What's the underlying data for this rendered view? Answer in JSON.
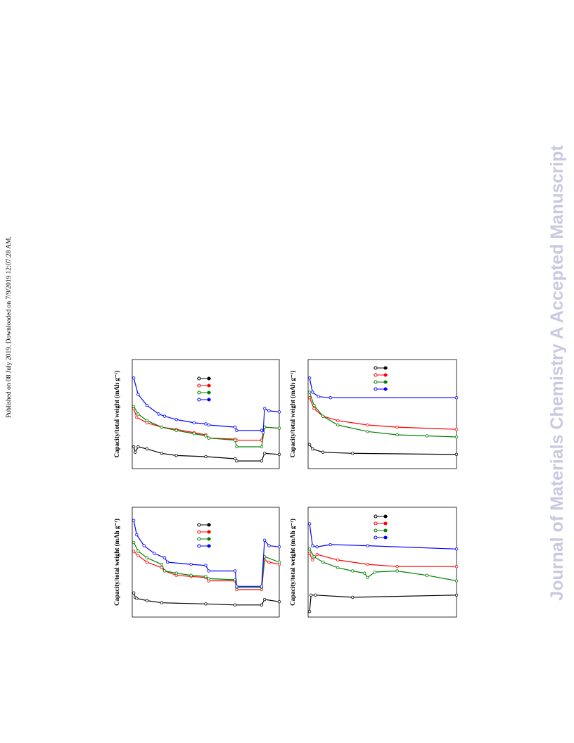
{
  "side_note": "Published on 08 July 2019. Downloaded on 7/9/2019 12:07:28 AM.",
  "watermark": "Journal of Materials Chemistry A Accepted Manuscript",
  "chart_data": [
    {
      "type": "line",
      "ylabel": "Capacity/total weight (mAh g⁻¹)",
      "xlim": [
        0,
        100
      ],
      "ylim": [
        0,
        100
      ],
      "series": [
        {
          "color": "#000000",
          "x": [
            1,
            2,
            4,
            10,
            20,
            30,
            50,
            70,
            71,
            88,
            90,
            100
          ],
          "values": [
            20,
            15,
            20,
            18,
            14,
            12,
            11,
            9,
            7,
            7,
            14,
            13
          ]
        },
        {
          "color": "#ff0000",
          "x": [
            1,
            3,
            10,
            20,
            30,
            42,
            50,
            52,
            70,
            71,
            88,
            90,
            100
          ],
          "values": [
            55,
            47,
            42,
            38,
            36,
            33,
            31,
            28,
            27,
            26,
            26,
            38,
            37
          ]
        },
        {
          "color": "#008000",
          "x": [
            1,
            4,
            10,
            20,
            30,
            42,
            50,
            52,
            70,
            71,
            88,
            90,
            100
          ],
          "values": [
            57,
            50,
            44,
            38,
            35,
            32,
            30,
            28,
            26,
            20,
            20,
            38,
            37
          ]
        },
        {
          "color": "#0000ff",
          "x": [
            1,
            4,
            10,
            18,
            22,
            30,
            42,
            50,
            52,
            70,
            71,
            88,
            89,
            90,
            93,
            100
          ],
          "values": [
            83,
            68,
            58,
            50,
            48,
            45,
            42,
            41,
            40,
            38,
            35,
            35,
            33,
            55,
            53,
            52
          ]
        }
      ]
    },
    {
      "type": "line",
      "ylabel": "Capacity/total weight (mAh g⁻¹)",
      "xlim": [
        0,
        100
      ],
      "ylim": [
        0,
        100
      ],
      "series": [
        {
          "color": "#000000",
          "x": [
            1,
            3,
            10,
            30,
            100
          ],
          "values": [
            22,
            18,
            15,
            14,
            13
          ]
        },
        {
          "color": "#ff0000",
          "x": [
            1,
            4,
            10,
            20,
            40,
            60,
            100
          ],
          "values": [
            65,
            55,
            48,
            44,
            40,
            38,
            36
          ]
        },
        {
          "color": "#008000",
          "x": [
            1,
            4,
            10,
            20,
            40,
            60,
            80,
            100
          ],
          "values": [
            70,
            58,
            48,
            40,
            34,
            31,
            30,
            29
          ]
        },
        {
          "color": "#0000ff",
          "x": [
            1,
            3,
            7,
            15,
            100
          ],
          "values": [
            83,
            70,
            66,
            65,
            65
          ]
        }
      ]
    },
    {
      "type": "line",
      "ylabel": "Capacity/total weight (mAh g⁻¹)",
      "xlim": [
        0,
        100
      ],
      "ylim": [
        0,
        100
      ],
      "series": [
        {
          "color": "#000000",
          "x": [
            1,
            2,
            3,
            10,
            20,
            50,
            70,
            88,
            90,
            100
          ],
          "values": [
            22,
            18,
            17,
            15,
            13,
            12,
            11,
            11,
            16,
            14
          ]
        },
        {
          "color": "#ff0000",
          "x": [
            1,
            4,
            10,
            20,
            22,
            30,
            40,
            50,
            52,
            70,
            71,
            88,
            90,
            93,
            100
          ],
          "values": [
            60,
            56,
            50,
            45,
            42,
            38,
            37,
            36,
            33,
            33,
            25,
            25,
            52,
            50,
            48
          ]
        },
        {
          "color": "#008000",
          "x": [
            1,
            4,
            10,
            20,
            22,
            30,
            40,
            50,
            52,
            70,
            71,
            88,
            90,
            100
          ],
          "values": [
            68,
            60,
            54,
            48,
            42,
            40,
            38,
            37,
            35,
            34,
            27,
            27,
            55,
            50
          ]
        },
        {
          "color": "#0000ff",
          "x": [
            1,
            3,
            8,
            15,
            22,
            24,
            40,
            50,
            52,
            70,
            71,
            88,
            90,
            93,
            100
          ],
          "values": [
            88,
            75,
            65,
            58,
            54,
            50,
            48,
            47,
            42,
            42,
            28,
            28,
            70,
            65,
            64
          ]
        }
      ]
    },
    {
      "type": "line",
      "ylabel": "Capacity/total weight (mAh g⁻¹)",
      "xlim": [
        0,
        100
      ],
      "ylim": [
        0,
        100
      ],
      "series": [
        {
          "color": "#000000",
          "x": [
            1,
            2,
            5,
            30,
            100
          ],
          "values": [
            5,
            20,
            20,
            18,
            20
          ]
        },
        {
          "color": "#ff0000",
          "x": [
            1,
            3,
            6,
            20,
            40,
            60,
            100
          ],
          "values": [
            58,
            52,
            57,
            52,
            48,
            46,
            46
          ]
        },
        {
          "color": "#008000",
          "x": [
            1,
            4,
            10,
            20,
            30,
            38,
            40,
            45,
            60,
            80,
            100
          ],
          "values": [
            62,
            55,
            50,
            45,
            42,
            40,
            36,
            41,
            42,
            38,
            33
          ]
        },
        {
          "color": "#0000ff",
          "x": [
            1,
            3,
            6,
            15,
            40,
            100
          ],
          "values": [
            85,
            65,
            64,
            66,
            65,
            62
          ]
        }
      ]
    }
  ]
}
